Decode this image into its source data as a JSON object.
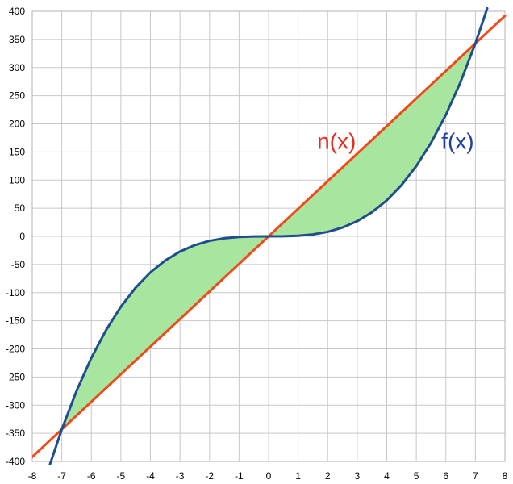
{
  "chart_data": {
    "type": "line",
    "title": "",
    "xlabel": "",
    "ylabel": "",
    "xlim": [
      -8,
      8
    ],
    "ylim": [
      -400,
      400
    ],
    "grid": true,
    "x_ticks": [
      "-8",
      "-7",
      "-6",
      "-5",
      "-4",
      "-3",
      "-2",
      "-1",
      "0",
      "1",
      "2",
      "3",
      "4",
      "5",
      "6",
      "7",
      "8"
    ],
    "y_ticks": [
      "400",
      "350",
      "300",
      "250",
      "200",
      "150",
      "100",
      "50",
      "0",
      "-50",
      "-100",
      "-150",
      "-200",
      "-250",
      "-300",
      "-350",
      "-400"
    ],
    "series": [
      {
        "name": "f(x)",
        "color": "#1f4e8c",
        "x": [
          -7.4,
          -7,
          -6.5,
          -6,
          -5.5,
          -5,
          -4.5,
          -4,
          -3.5,
          -3,
          -2.5,
          -2,
          -1.5,
          -1,
          -0.5,
          0,
          0.5,
          1,
          1.5,
          2,
          2.5,
          3,
          3.5,
          4,
          4.5,
          5,
          5.5,
          6,
          6.5,
          7,
          7.4
        ],
        "y": [
          -405.2,
          -343,
          -274.6,
          -216,
          -166.4,
          -125,
          -91.1,
          -64,
          -42.9,
          -27,
          -15.6,
          -8,
          -3.4,
          -1,
          -0.1,
          0,
          0.1,
          1,
          3.4,
          8,
          15.6,
          27,
          42.9,
          64,
          91.1,
          125,
          166.4,
          216,
          274.6,
          343,
          405.2
        ]
      },
      {
        "name": "n(x)",
        "color": "#f04a1a",
        "x": [
          -8,
          8
        ],
        "y": [
          -392,
          392
        ]
      }
    ],
    "shaded_region": {
      "between": [
        "f(x)",
        "n(x)"
      ],
      "x_range": [
        -7,
        7
      ],
      "color": "#a8e6a0"
    },
    "annotations": [
      {
        "text": "n(x)",
        "x": 2.3,
        "y": 170,
        "color": "#e8291c"
      },
      {
        "text": "f(x)",
        "x": 6.4,
        "y": 170,
        "color": "#1f3f9a"
      }
    ]
  }
}
